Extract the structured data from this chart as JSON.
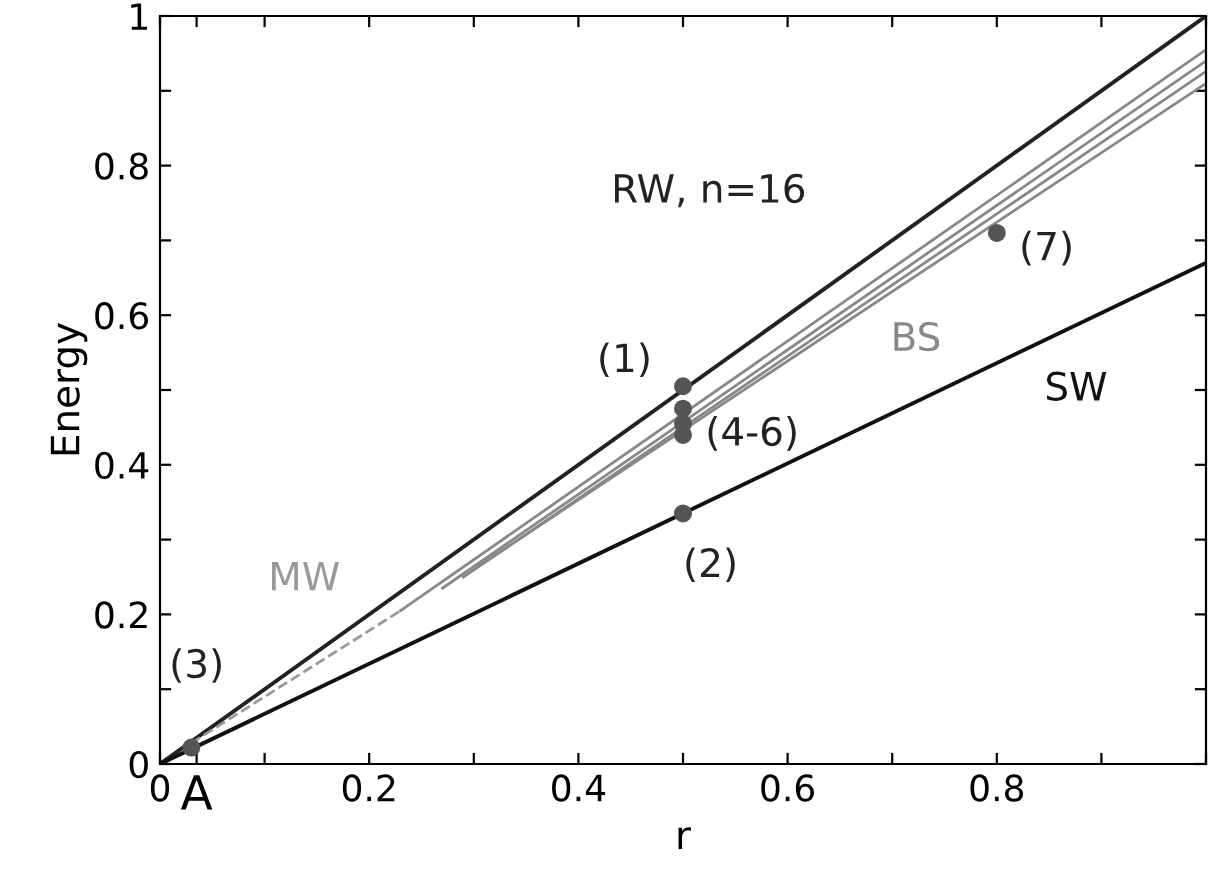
{
  "chart_data": {
    "type": "line",
    "xlabel": "r",
    "ylabel": "Energy",
    "xlim": [
      0,
      1
    ],
    "ylim": [
      0,
      1
    ],
    "xticks": [
      0,
      {
        "value": 0.035,
        "label": "A"
      },
      {
        "value": 0.1,
        "label": null
      },
      0.2,
      {
        "value": 0.3,
        "label": null
      },
      0.4,
      {
        "value": 0.5,
        "label": null
      },
      0.6,
      {
        "value": 0.7,
        "label": null
      },
      0.8,
      {
        "value": 0.9,
        "label": null
      },
      {
        "value": 1,
        "label": null
      }
    ],
    "yticks": [
      0,
      {
        "value": 0.1,
        "label": null
      },
      0.2,
      {
        "value": 0.3,
        "label": null
      },
      0.4,
      {
        "value": 0.5,
        "label": null
      },
      0.6,
      {
        "value": 0.7,
        "label": null
      },
      0.8,
      {
        "value": 0.9,
        "label": null
      },
      1
    ],
    "grid": false,
    "legend": false,
    "series": [
      {
        "name": "RW, n=16",
        "color": "#222222",
        "x": [
          0,
          1
        ],
        "values": [
          0,
          1
        ]
      },
      {
        "name": "SW",
        "color": "#111111",
        "x": [
          0,
          1
        ],
        "values": [
          0,
          0.67
        ]
      },
      {
        "name": "BS",
        "color": "#888888",
        "x": [
          0.23,
          1
        ],
        "values": [
          0.205,
          0.955
        ]
      },
      {
        "color": "#888888",
        "x": [
          0.27,
          1
        ],
        "values": [
          0.235,
          0.94
        ]
      },
      {
        "color": "#888888",
        "x": [
          0.29,
          1
        ],
        "values": [
          0.25,
          0.926
        ]
      },
      {
        "color": "#888888",
        "x": [
          0.305,
          1
        ],
        "values": [
          0.265,
          0.91
        ]
      },
      {
        "name": "MW",
        "color": "#999999",
        "line_style": "dashed",
        "x": [
          0.03,
          0.23
        ],
        "values": [
          0.028,
          0.205
        ]
      },
      {
        "type": "scatter",
        "color": "#555555",
        "x": [
          0.5,
          0.5,
          0.5,
          0.5,
          0.5,
          0.8,
          0.03
        ],
        "values": [
          0.505,
          0.335,
          0.475,
          0.455,
          0.44,
          0.71,
          0.022
        ]
      }
    ],
    "annotations": [
      {
        "text": "(1)",
        "x": 0.5,
        "y": 0.505
      },
      {
        "text": "(2)",
        "x": 0.5,
        "y": 0.335
      },
      {
        "text": "(3)",
        "x": 0.03,
        "y": 0.022
      },
      {
        "text": "(4-6)",
        "x": 0.5,
        "y": 0.44
      },
      {
        "text": "(7)",
        "x": 0.8,
        "y": 0.71
      }
    ]
  }
}
